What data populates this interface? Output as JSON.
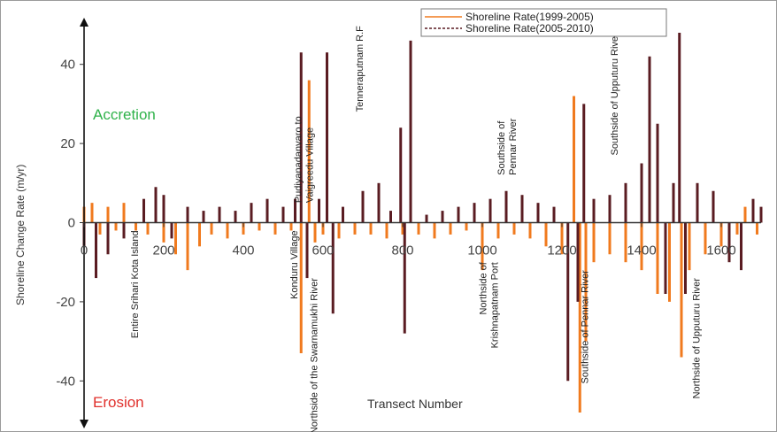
{
  "chart_data": {
    "type": "bar",
    "title": "",
    "xlabel": "Transect Number",
    "ylabel": "Shoreline Change Rate (m/yr)",
    "xlim": [
      0,
      1700
    ],
    "ylim": [
      -50,
      50
    ],
    "x_ticks": [
      "0",
      "200",
      "400",
      "600",
      "800",
      "1000",
      "1200",
      "1400",
      "1600"
    ],
    "y_ticks": [
      "40",
      "20",
      "0",
      "-20",
      "-40"
    ],
    "zone_labels": {
      "accretion": "Accretion",
      "erosion": "Erosion"
    },
    "zone_colors": {
      "accretion": "#2fb24a",
      "erosion": "#e0302c"
    },
    "legend_position": "top-right",
    "series": [
      {
        "name": "Shoreline Rate(1999-2005)",
        "color": "#f07a1e",
        "points": [
          [
            0,
            4
          ],
          [
            20,
            5
          ],
          [
            40,
            -3
          ],
          [
            60,
            4
          ],
          [
            80,
            -2
          ],
          [
            100,
            5
          ],
          [
            130,
            -2
          ],
          [
            160,
            -3
          ],
          [
            200,
            -5
          ],
          [
            230,
            -8
          ],
          [
            260,
            -12
          ],
          [
            290,
            -6
          ],
          [
            320,
            -3
          ],
          [
            360,
            -4
          ],
          [
            400,
            -3
          ],
          [
            440,
            -2
          ],
          [
            480,
            -3
          ],
          [
            520,
            -2
          ],
          [
            545,
            -33
          ],
          [
            565,
            36
          ],
          [
            580,
            -5
          ],
          [
            600,
            -3
          ],
          [
            640,
            -4
          ],
          [
            680,
            -3
          ],
          [
            720,
            -3
          ],
          [
            760,
            -4
          ],
          [
            800,
            -3
          ],
          [
            840,
            -3
          ],
          [
            880,
            -4
          ],
          [
            920,
            -3
          ],
          [
            960,
            -2
          ],
          [
            1000,
            -12
          ],
          [
            1040,
            -4
          ],
          [
            1080,
            -3
          ],
          [
            1120,
            -4
          ],
          [
            1160,
            -6
          ],
          [
            1200,
            -8
          ],
          [
            1230,
            32
          ],
          [
            1245,
            -48
          ],
          [
            1260,
            -30
          ],
          [
            1280,
            -10
          ],
          [
            1320,
            -8
          ],
          [
            1360,
            -10
          ],
          [
            1400,
            -12
          ],
          [
            1440,
            -18
          ],
          [
            1470,
            -20
          ],
          [
            1500,
            -34
          ],
          [
            1520,
            -12
          ],
          [
            1560,
            -8
          ],
          [
            1600,
            -6
          ],
          [
            1640,
            -3
          ],
          [
            1660,
            4
          ],
          [
            1690,
            -3
          ]
        ]
      },
      {
        "name": "Shoreline Rate(2005-2010)",
        "color": "#5a1c22",
        "points": [
          [
            0,
            -6
          ],
          [
            30,
            -14
          ],
          [
            60,
            -8
          ],
          [
            100,
            -4
          ],
          [
            150,
            6
          ],
          [
            180,
            9
          ],
          [
            200,
            7
          ],
          [
            220,
            -4
          ],
          [
            260,
            4
          ],
          [
            300,
            3
          ],
          [
            340,
            4
          ],
          [
            380,
            3
          ],
          [
            420,
            5
          ],
          [
            460,
            6
          ],
          [
            500,
            4
          ],
          [
            530,
            6
          ],
          [
            545,
            43
          ],
          [
            560,
            -14
          ],
          [
            590,
            6
          ],
          [
            610,
            43
          ],
          [
            625,
            -23
          ],
          [
            650,
            4
          ],
          [
            700,
            8
          ],
          [
            740,
            10
          ],
          [
            770,
            3
          ],
          [
            795,
            24
          ],
          [
            805,
            -28
          ],
          [
            820,
            46
          ],
          [
            860,
            2
          ],
          [
            900,
            3
          ],
          [
            940,
            4
          ],
          [
            980,
            5
          ],
          [
            1020,
            6
          ],
          [
            1060,
            8
          ],
          [
            1100,
            7
          ],
          [
            1140,
            5
          ],
          [
            1180,
            4
          ],
          [
            1215,
            -40
          ],
          [
            1240,
            -20
          ],
          [
            1255,
            30
          ],
          [
            1280,
            6
          ],
          [
            1320,
            7
          ],
          [
            1360,
            10
          ],
          [
            1400,
            15
          ],
          [
            1420,
            42
          ],
          [
            1440,
            25
          ],
          [
            1460,
            -18
          ],
          [
            1480,
            10
          ],
          [
            1495,
            48
          ],
          [
            1510,
            -18
          ],
          [
            1540,
            10
          ],
          [
            1580,
            8
          ],
          [
            1620,
            -10
          ],
          [
            1650,
            -12
          ],
          [
            1680,
            6
          ],
          [
            1700,
            4
          ]
        ]
      }
    ],
    "annotations": [
      {
        "text": "Entire Srihari Kota Island",
        "x": 135,
        "y": -2,
        "dir": "down"
      },
      {
        "text": "Pudiyanadanvaro to",
        "x": 545,
        "y": 5,
        "dir": "up",
        "line2": "Vaigreedu Village"
      },
      {
        "text": "Konduru Village",
        "x": 535,
        "y": -2,
        "dir": "down"
      },
      {
        "text": "Northside of the Swarnamukhi River",
        "x": 585,
        "y": -14,
        "dir": "down"
      },
      {
        "text": "Tenneraputnam R.F",
        "x": 700,
        "y": 28,
        "dir": "up"
      },
      {
        "text": "Southside of",
        "x": 1055,
        "y": 12,
        "dir": "up",
        "line2": "Pennar River"
      },
      {
        "text": "Northside of",
        "x": 1010,
        "y": -10,
        "dir": "down",
        "line2": "Krishnapatnam Port"
      },
      {
        "text": "Southside of Pennar River",
        "x": 1265,
        "y": -12,
        "dir": "down"
      },
      {
        "text": "Southside of Upputuru River",
        "x": 1340,
        "y": 17,
        "dir": "up"
      },
      {
        "text": "Northside of Upputuru River",
        "x": 1545,
        "y": -14,
        "dir": "down"
      }
    ]
  }
}
